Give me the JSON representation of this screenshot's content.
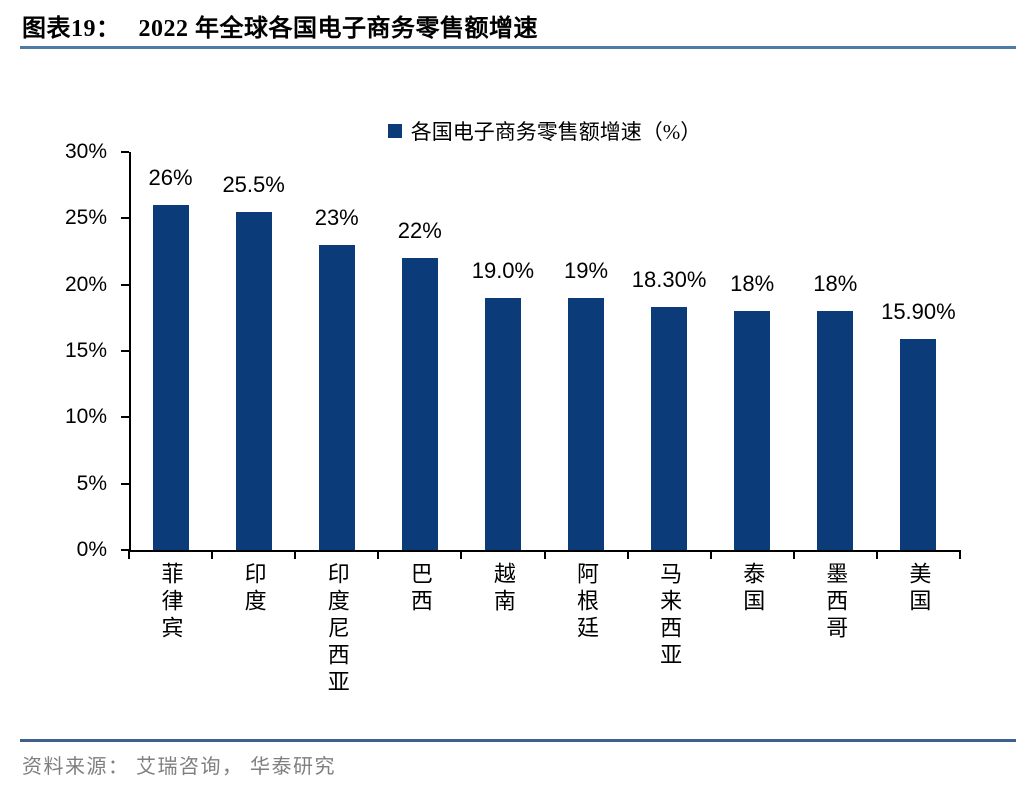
{
  "header": {
    "figure_label": "图表19：",
    "title": "2022 年全球各国电子商务零售额增速"
  },
  "chart_data": {
    "type": "bar",
    "title": "2022 年全球各国电子商务零售额增速",
    "legend_label": "各国电子商务零售额增速（%）",
    "legend_position": "top-center",
    "categories": [
      "菲律宾",
      "印度",
      "印度尼西亚",
      "巴西",
      "越南",
      "阿根廷",
      "马来西亚",
      "泰国",
      "墨西哥",
      "美国"
    ],
    "series": [
      {
        "name": "各国电子商务零售额增速（%）",
        "values": [
          26,
          25.5,
          23,
          22,
          19.0,
          19,
          18.3,
          18,
          18,
          15.9
        ],
        "value_labels": [
          "26%",
          "25.5%",
          "23%",
          "22%",
          "19.0%",
          "19%",
          "18.30%",
          "18%",
          "18%",
          "15.90%"
        ]
      }
    ],
    "xlabel": "",
    "ylabel": "",
    "ylim": [
      0,
      30
    ],
    "ytick_step": 5,
    "ytick_labels": [
      "0%",
      "5%",
      "10%",
      "15%",
      "20%",
      "25%",
      "30%"
    ],
    "grid": false
  },
  "footer": {
    "source": "资料来源： 艾瑞咨询， 华泰研究"
  },
  "colors": {
    "bar": "#0b3b78",
    "legend_swatch": "#0b3b78",
    "title_rule": "#4d7aa6",
    "footer_rule": "#3d618c",
    "source_text": "#7f7f7f",
    "axis": "#000000",
    "text": "#000000",
    "background": "#ffffff"
  }
}
